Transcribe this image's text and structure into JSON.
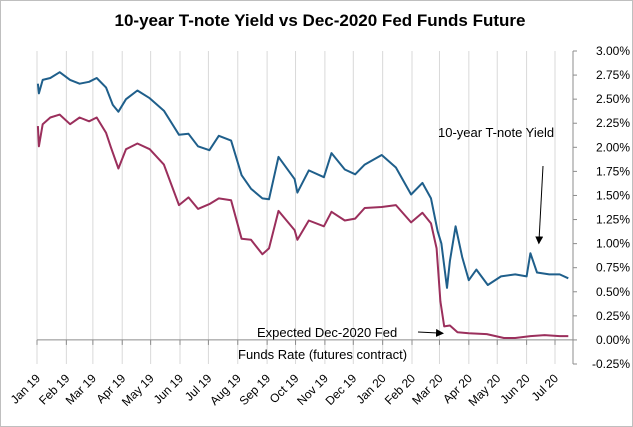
{
  "chart_data": {
    "type": "line",
    "title": "10-year T-note Yield vs Dec-2020 Fed Funds Future",
    "xlabel": "",
    "ylabel": "",
    "x_range": [
      "2019-01-01",
      "2020-07-20"
    ],
    "x_tick_labels": [
      {
        "label": "Jan 19",
        "date": "2019-01-01"
      },
      {
        "label": "Feb 19",
        "date": "2019-02-01"
      },
      {
        "label": "Mar 19",
        "date": "2019-03-01"
      },
      {
        "label": "Apr 19",
        "date": "2019-04-01"
      },
      {
        "label": "May 19",
        "date": "2019-05-01"
      },
      {
        "label": "Jun 19",
        "date": "2019-06-01"
      },
      {
        "label": "Jul 19",
        "date": "2019-07-01"
      },
      {
        "label": "Aug 19",
        "date": "2019-08-01"
      },
      {
        "label": "Sep 19",
        "date": "2019-09-01"
      },
      {
        "label": "Oct 19",
        "date": "2019-10-01"
      },
      {
        "label": "Nov 19",
        "date": "2019-11-01"
      },
      {
        "label": "Dec 19",
        "date": "2019-12-01"
      },
      {
        "label": "Jan 20",
        "date": "2020-01-01"
      },
      {
        "label": "Feb 20",
        "date": "2020-02-01"
      },
      {
        "label": "Mar 20",
        "date": "2020-03-01"
      },
      {
        "label": "Apr 20",
        "date": "2020-04-01"
      },
      {
        "label": "May 20",
        "date": "2020-05-01"
      },
      {
        "label": "Jun 20",
        "date": "2020-06-01"
      },
      {
        "label": "Jul 20",
        "date": "2020-07-01"
      }
    ],
    "y_axis": {
      "min": -0.25,
      "max": 3.0,
      "step": 0.25,
      "unit": "%",
      "position": "right",
      "tick_labels": [
        "-0.25%",
        "0.00%",
        "0.25%",
        "0.50%",
        "0.75%",
        "1.00%",
        "1.25%",
        "1.50%",
        "1.75%",
        "2.00%",
        "2.25%",
        "2.50%",
        "2.75%",
        "3.00%"
      ]
    },
    "grid": {
      "vertical": true,
      "horizontal": false
    },
    "series": [
      {
        "name": "10-year T-note Yield",
        "color": "#1f5f8b",
        "points": [
          [
            "2019-01-02",
            2.66
          ],
          [
            "2019-01-03",
            2.56
          ],
          [
            "2019-01-07",
            2.7
          ],
          [
            "2019-01-15",
            2.72
          ],
          [
            "2019-01-25",
            2.78
          ],
          [
            "2019-02-05",
            2.7
          ],
          [
            "2019-02-15",
            2.66
          ],
          [
            "2019-02-25",
            2.68
          ],
          [
            "2019-03-05",
            2.72
          ],
          [
            "2019-03-15",
            2.62
          ],
          [
            "2019-03-22",
            2.44
          ],
          [
            "2019-03-28",
            2.37
          ],
          [
            "2019-04-05",
            2.5
          ],
          [
            "2019-04-17",
            2.59
          ],
          [
            "2019-04-30",
            2.51
          ],
          [
            "2019-05-15",
            2.38
          ],
          [
            "2019-05-31",
            2.13
          ],
          [
            "2019-06-10",
            2.14
          ],
          [
            "2019-06-20",
            2.01
          ],
          [
            "2019-07-02",
            1.97
          ],
          [
            "2019-07-12",
            2.12
          ],
          [
            "2019-07-25",
            2.07
          ],
          [
            "2019-08-05",
            1.71
          ],
          [
            "2019-08-15",
            1.57
          ],
          [
            "2019-08-27",
            1.47
          ],
          [
            "2019-09-03",
            1.46
          ],
          [
            "2019-09-13",
            1.9
          ],
          [
            "2019-09-30",
            1.67
          ],
          [
            "2019-10-03",
            1.53
          ],
          [
            "2019-10-15",
            1.76
          ],
          [
            "2019-10-31",
            1.69
          ],
          [
            "2019-11-08",
            1.94
          ],
          [
            "2019-11-22",
            1.77
          ],
          [
            "2019-12-03",
            1.72
          ],
          [
            "2019-12-13",
            1.82
          ],
          [
            "2019-12-31",
            1.92
          ],
          [
            "2020-01-15",
            1.79
          ],
          [
            "2020-01-31",
            1.51
          ],
          [
            "2020-02-12",
            1.63
          ],
          [
            "2020-02-21",
            1.47
          ],
          [
            "2020-02-28",
            1.13
          ],
          [
            "2020-03-03",
            1.0
          ],
          [
            "2020-03-09",
            0.54
          ],
          [
            "2020-03-12",
            0.82
          ],
          [
            "2020-03-18",
            1.18
          ],
          [
            "2020-03-25",
            0.86
          ],
          [
            "2020-04-01",
            0.62
          ],
          [
            "2020-04-09",
            0.73
          ],
          [
            "2020-04-21",
            0.57
          ],
          [
            "2020-05-05",
            0.66
          ],
          [
            "2020-05-20",
            0.68
          ],
          [
            "2020-06-01",
            0.66
          ],
          [
            "2020-06-05",
            0.9
          ],
          [
            "2020-06-12",
            0.7
          ],
          [
            "2020-06-25",
            0.68
          ],
          [
            "2020-07-06",
            0.68
          ],
          [
            "2020-07-15",
            0.64
          ]
        ]
      },
      {
        "name": "Dec-2020 Fed Funds Rate (futures contract)",
        "color": "#9b2f5c",
        "points": [
          [
            "2019-01-02",
            2.22
          ],
          [
            "2019-01-03",
            2.01
          ],
          [
            "2019-01-07",
            2.24
          ],
          [
            "2019-01-15",
            2.31
          ],
          [
            "2019-01-25",
            2.34
          ],
          [
            "2019-02-05",
            2.24
          ],
          [
            "2019-02-15",
            2.31
          ],
          [
            "2019-02-25",
            2.27
          ],
          [
            "2019-03-05",
            2.31
          ],
          [
            "2019-03-15",
            2.15
          ],
          [
            "2019-03-20",
            2.0
          ],
          [
            "2019-03-28",
            1.78
          ],
          [
            "2019-04-05",
            1.98
          ],
          [
            "2019-04-17",
            2.04
          ],
          [
            "2019-04-30",
            1.98
          ],
          [
            "2019-05-15",
            1.82
          ],
          [
            "2019-05-31",
            1.4
          ],
          [
            "2019-06-10",
            1.48
          ],
          [
            "2019-06-20",
            1.36
          ],
          [
            "2019-07-02",
            1.41
          ],
          [
            "2019-07-12",
            1.47
          ],
          [
            "2019-07-25",
            1.45
          ],
          [
            "2019-08-05",
            1.05
          ],
          [
            "2019-08-15",
            1.04
          ],
          [
            "2019-08-27",
            0.89
          ],
          [
            "2019-09-03",
            0.95
          ],
          [
            "2019-09-13",
            1.34
          ],
          [
            "2019-09-30",
            1.14
          ],
          [
            "2019-10-03",
            1.04
          ],
          [
            "2019-10-15",
            1.24
          ],
          [
            "2019-10-31",
            1.18
          ],
          [
            "2019-11-08",
            1.33
          ],
          [
            "2019-11-22",
            1.24
          ],
          [
            "2019-12-03",
            1.26
          ],
          [
            "2019-12-13",
            1.37
          ],
          [
            "2019-12-31",
            1.38
          ],
          [
            "2020-01-15",
            1.4
          ],
          [
            "2020-01-31",
            1.22
          ],
          [
            "2020-02-12",
            1.32
          ],
          [
            "2020-02-21",
            1.21
          ],
          [
            "2020-02-27",
            0.95
          ],
          [
            "2020-03-02",
            0.4
          ],
          [
            "2020-03-06",
            0.14
          ],
          [
            "2020-03-12",
            0.15
          ],
          [
            "2020-03-20",
            0.08
          ],
          [
            "2020-04-01",
            0.07
          ],
          [
            "2020-04-20",
            0.06
          ],
          [
            "2020-05-08",
            0.02
          ],
          [
            "2020-05-20",
            0.02
          ],
          [
            "2020-06-05",
            0.04
          ],
          [
            "2020-06-20",
            0.05
          ],
          [
            "2020-07-06",
            0.04
          ],
          [
            "2020-07-15",
            0.04
          ]
        ]
      }
    ],
    "annotations": [
      {
        "lines": [
          "10-year T-note Yield"
        ],
        "arrow_to": [
          "2020-06-15",
          0.95
        ]
      },
      {
        "lines": [
          "Expected Dec-2020 Fed",
          "Funds Rate (futures contract)"
        ],
        "arrow_to": [
          "2020-03-10",
          0.1
        ]
      }
    ]
  }
}
